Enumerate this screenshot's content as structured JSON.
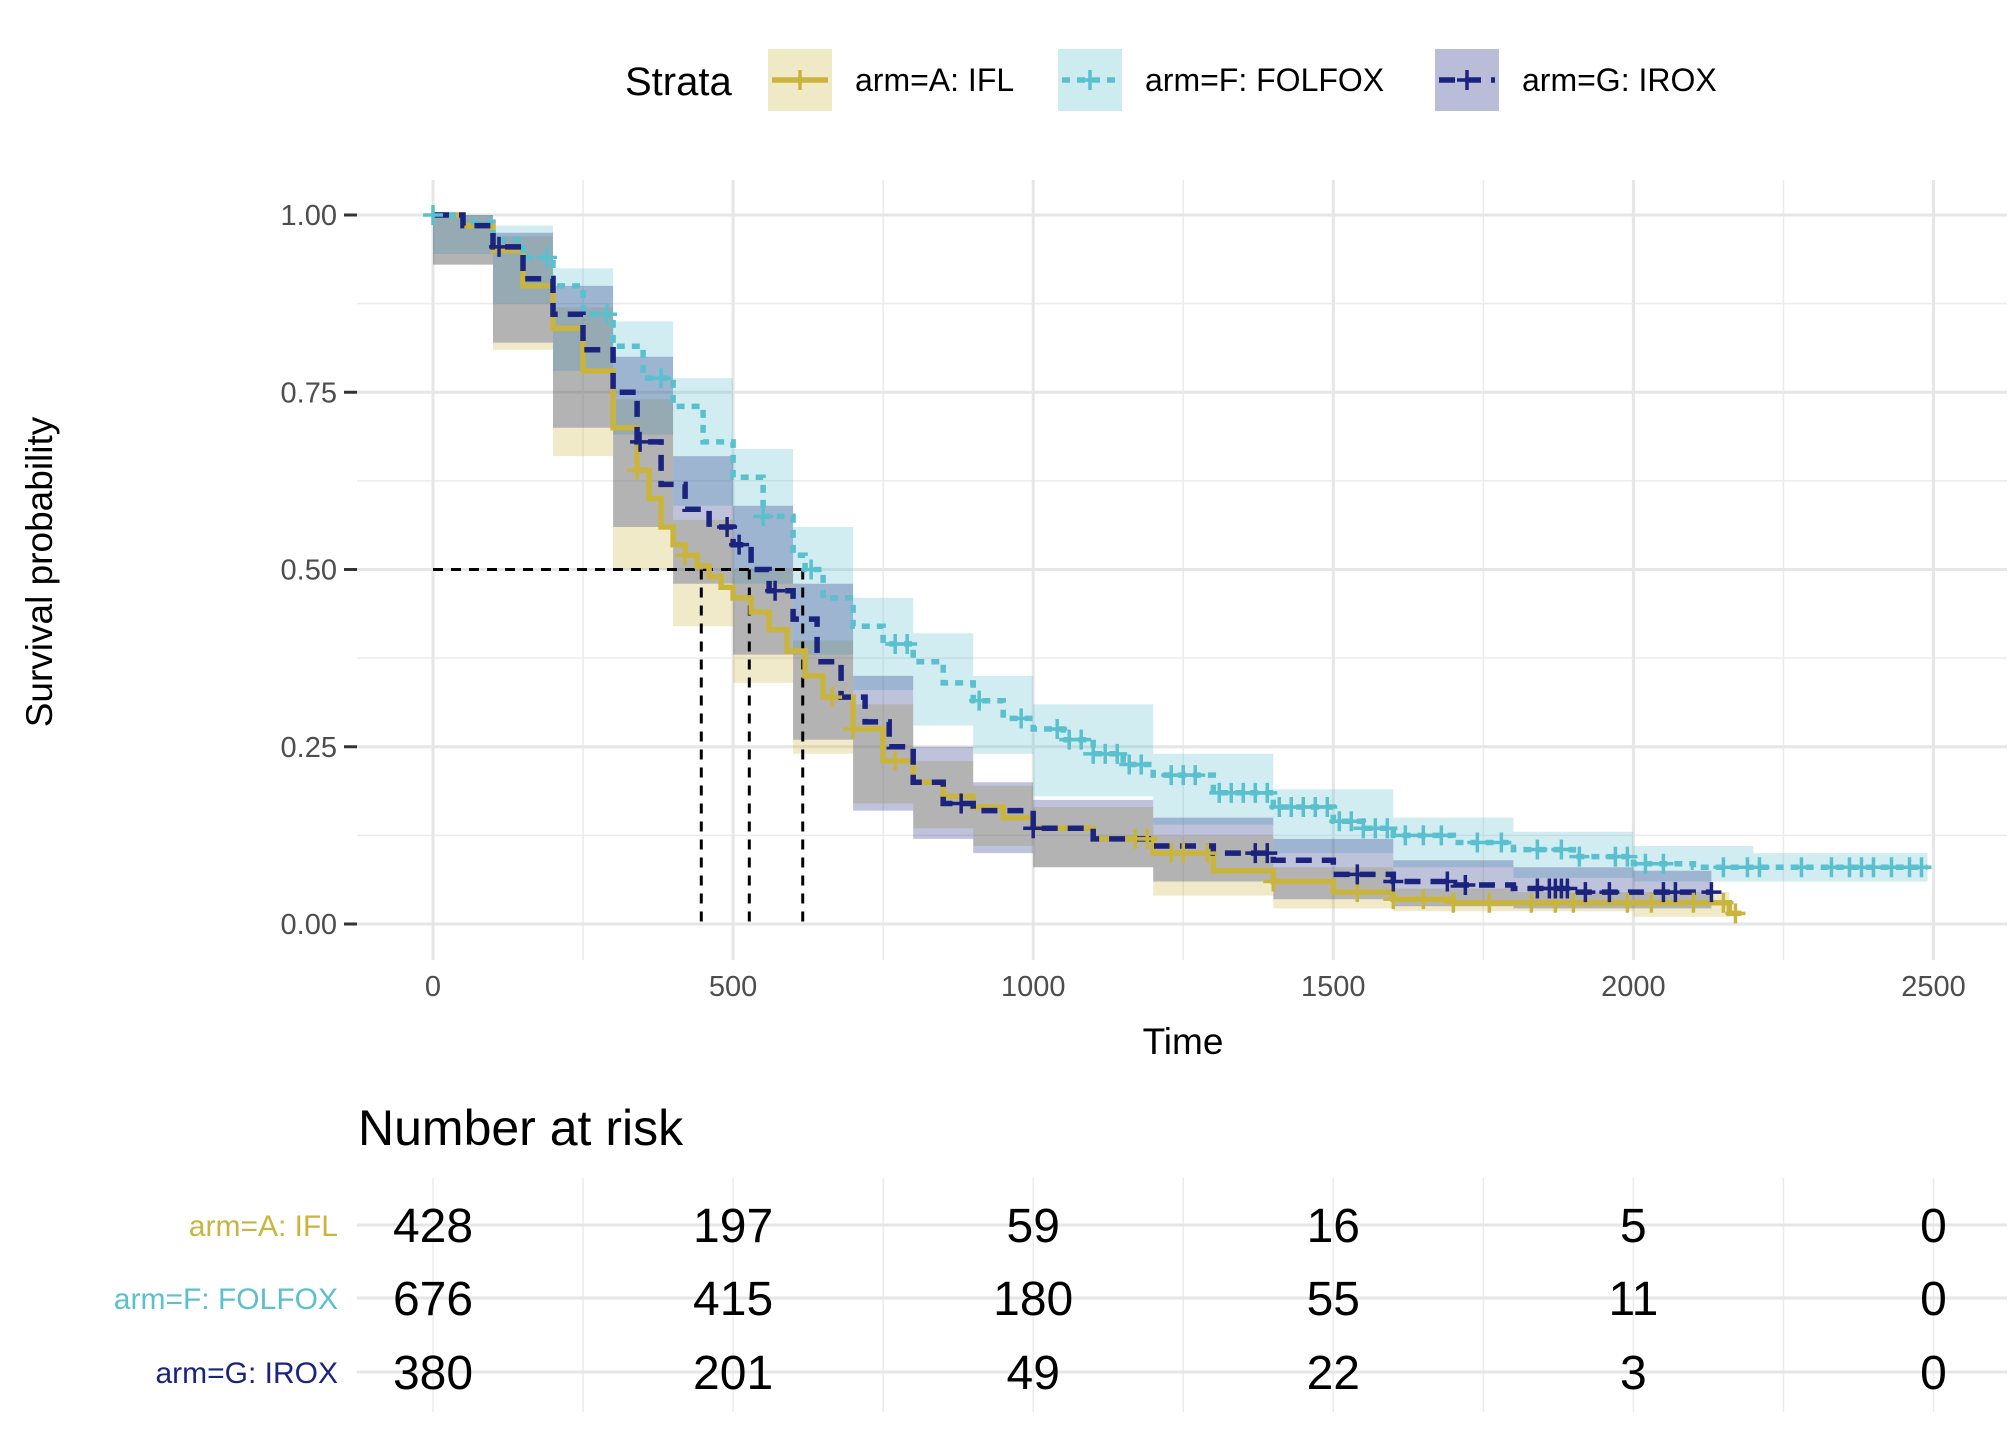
{
  "chart_data": {
    "type": "line",
    "subtype": "kaplan-meier survival curve",
    "xlabel": "Time",
    "ylabel": "Survival probability",
    "xlim": [
      0,
      2500
    ],
    "ylim": [
      0,
      1
    ],
    "x_ticks": [
      0,
      500,
      1000,
      1500,
      2000,
      2500
    ],
    "y_ticks": [
      0,
      0.25,
      0.5,
      0.75,
      1
    ],
    "y_tick_labels": [
      "0.00",
      "0.25",
      "0.50",
      "0.75",
      "1.00"
    ],
    "grid": true,
    "confidence_bands": true,
    "legend": {
      "title": "Strata",
      "placement": "top"
    },
    "median_survival": {
      "y": 0.5,
      "times": [
        447,
        527,
        616
      ]
    },
    "series": [
      {
        "name": "arm=A: IFL",
        "color": "#C9B53E",
        "dash": "solid",
        "points": [
          [
            0,
            1
          ],
          [
            50,
            0.985
          ],
          [
            100,
            0.95
          ],
          [
            150,
            0.9
          ],
          [
            200,
            0.84
          ],
          [
            250,
            0.78
          ],
          [
            300,
            0.7
          ],
          [
            340,
            0.64
          ],
          [
            360,
            0.6
          ],
          [
            380,
            0.56
          ],
          [
            400,
            0.535
          ],
          [
            420,
            0.52
          ],
          [
            440,
            0.505
          ],
          [
            460,
            0.49
          ],
          [
            480,
            0.475
          ],
          [
            500,
            0.46
          ],
          [
            530,
            0.44
          ],
          [
            560,
            0.415
          ],
          [
            590,
            0.385
          ],
          [
            620,
            0.35
          ],
          [
            650,
            0.32
          ],
          [
            700,
            0.275
          ],
          [
            750,
            0.23
          ],
          [
            800,
            0.2
          ],
          [
            850,
            0.18
          ],
          [
            900,
            0.165
          ],
          [
            950,
            0.15
          ],
          [
            1000,
            0.135
          ],
          [
            1100,
            0.12
          ],
          [
            1200,
            0.1
          ],
          [
            1300,
            0.075
          ],
          [
            1400,
            0.06
          ],
          [
            1500,
            0.045
          ],
          [
            1600,
            0.035
          ],
          [
            1700,
            0.03
          ],
          [
            1800,
            0.03
          ],
          [
            1900,
            0.03
          ],
          [
            2000,
            0.03
          ],
          [
            2100,
            0.03
          ],
          [
            2150,
            0.03
          ],
          [
            2160,
            0.015
          ],
          [
            2180,
            0.015
          ]
        ],
        "lower": [
          [
            0,
            1
          ],
          [
            100,
            0.93
          ],
          [
            200,
            0.81
          ],
          [
            300,
            0.66
          ],
          [
            400,
            0.5
          ],
          [
            500,
            0.42
          ],
          [
            600,
            0.34
          ],
          [
            700,
            0.24
          ],
          [
            800,
            0.17
          ],
          [
            900,
            0.135
          ],
          [
            1000,
            0.11
          ],
          [
            1200,
            0.08
          ],
          [
            1400,
            0.04
          ],
          [
            1600,
            0.022
          ],
          [
            1800,
            0.018
          ],
          [
            2000,
            0.018
          ],
          [
            2160,
            0.01
          ]
        ],
        "upper": [
          [
            0,
            1
          ],
          [
            100,
            0.97
          ],
          [
            200,
            0.87
          ],
          [
            300,
            0.74
          ],
          [
            400,
            0.57
          ],
          [
            500,
            0.5
          ],
          [
            600,
            0.4
          ],
          [
            700,
            0.31
          ],
          [
            800,
            0.23
          ],
          [
            900,
            0.195
          ],
          [
            1000,
            0.165
          ],
          [
            1200,
            0.125
          ],
          [
            1400,
            0.08
          ],
          [
            1600,
            0.05
          ],
          [
            1800,
            0.045
          ],
          [
            2000,
            0.045
          ],
          [
            2160,
            0.04
          ]
        ],
        "censor_times": [
          340,
          420,
          665,
          700,
          770,
          1170,
          1190,
          1230,
          1250,
          1290,
          1400,
          1540,
          1600,
          1650,
          1700,
          1760,
          1830,
          1870,
          1900,
          1990,
          2030,
          2100,
          2150,
          2170
        ]
      },
      {
        "name": "arm=F: FOLFOX",
        "color": "#5BC0CE",
        "dash": "8,7",
        "points": [
          [
            0,
            1
          ],
          [
            50,
            0.99
          ],
          [
            100,
            0.965
          ],
          [
            150,
            0.94
          ],
          [
            200,
            0.9
          ],
          [
            250,
            0.86
          ],
          [
            300,
            0.815
          ],
          [
            350,
            0.77
          ],
          [
            400,
            0.73
          ],
          [
            450,
            0.68
          ],
          [
            500,
            0.63
          ],
          [
            550,
            0.575
          ],
          [
            600,
            0.52
          ],
          [
            620,
            0.5
          ],
          [
            650,
            0.46
          ],
          [
            700,
            0.42
          ],
          [
            750,
            0.395
          ],
          [
            800,
            0.37
          ],
          [
            850,
            0.34
          ],
          [
            900,
            0.315
          ],
          [
            950,
            0.29
          ],
          [
            1000,
            0.275
          ],
          [
            1050,
            0.26
          ],
          [
            1100,
            0.24
          ],
          [
            1150,
            0.225
          ],
          [
            1200,
            0.21
          ],
          [
            1300,
            0.185
          ],
          [
            1400,
            0.165
          ],
          [
            1500,
            0.145
          ],
          [
            1550,
            0.135
          ],
          [
            1600,
            0.125
          ],
          [
            1700,
            0.115
          ],
          [
            1800,
            0.105
          ],
          [
            1900,
            0.095
          ],
          [
            2000,
            0.085
          ],
          [
            2100,
            0.08
          ],
          [
            2200,
            0.08
          ],
          [
            2300,
            0.08
          ],
          [
            2400,
            0.08
          ],
          [
            2490,
            0.08
          ]
        ],
        "lower": [
          [
            0,
            1
          ],
          [
            100,
            0.945
          ],
          [
            200,
            0.875
          ],
          [
            300,
            0.78
          ],
          [
            400,
            0.69
          ],
          [
            500,
            0.59
          ],
          [
            600,
            0.48
          ],
          [
            700,
            0.38
          ],
          [
            800,
            0.33
          ],
          [
            900,
            0.28
          ],
          [
            1000,
            0.24
          ],
          [
            1200,
            0.18
          ],
          [
            1400,
            0.14
          ],
          [
            1600,
            0.1
          ],
          [
            1800,
            0.08
          ],
          [
            2000,
            0.065
          ],
          [
            2200,
            0.06
          ],
          [
            2490,
            0.06
          ]
        ],
        "upper": [
          [
            0,
            1
          ],
          [
            100,
            0.985
          ],
          [
            200,
            0.925
          ],
          [
            300,
            0.85
          ],
          [
            400,
            0.77
          ],
          [
            500,
            0.67
          ],
          [
            600,
            0.56
          ],
          [
            700,
            0.46
          ],
          [
            800,
            0.41
          ],
          [
            900,
            0.35
          ],
          [
            1000,
            0.31
          ],
          [
            1200,
            0.24
          ],
          [
            1400,
            0.19
          ],
          [
            1600,
            0.15
          ],
          [
            1800,
            0.13
          ],
          [
            2000,
            0.11
          ],
          [
            2200,
            0.1
          ],
          [
            2490,
            0.1
          ]
        ],
        "censor_times": [
          0,
          190,
          290,
          380,
          550,
          630,
          770,
          790,
          910,
          980,
          1040,
          1060,
          1080,
          1100,
          1120,
          1140,
          1160,
          1180,
          1230,
          1250,
          1270,
          1310,
          1330,
          1350,
          1370,
          1390,
          1410,
          1430,
          1450,
          1470,
          1490,
          1510,
          1530,
          1550,
          1570,
          1590,
          1620,
          1650,
          1680,
          1740,
          1780,
          1840,
          1880,
          1910,
          1970,
          1990,
          2020,
          2050,
          2150,
          2190,
          2210,
          2280,
          2330,
          2360,
          2380,
          2400,
          2430,
          2460,
          2480
        ]
      },
      {
        "name": "arm=G: IROX",
        "color": "#1A237E",
        "dash": "16,10",
        "points": [
          [
            0,
            1
          ],
          [
            50,
            0.985
          ],
          [
            100,
            0.955
          ],
          [
            150,
            0.91
          ],
          [
            200,
            0.86
          ],
          [
            250,
            0.81
          ],
          [
            300,
            0.75
          ],
          [
            340,
            0.68
          ],
          [
            380,
            0.62
          ],
          [
            420,
            0.585
          ],
          [
            460,
            0.56
          ],
          [
            500,
            0.535
          ],
          [
            530,
            0.5
          ],
          [
            560,
            0.47
          ],
          [
            600,
            0.43
          ],
          [
            640,
            0.37
          ],
          [
            680,
            0.32
          ],
          [
            720,
            0.285
          ],
          [
            760,
            0.25
          ],
          [
            800,
            0.2
          ],
          [
            850,
            0.17
          ],
          [
            900,
            0.16
          ],
          [
            1000,
            0.135
          ],
          [
            1100,
            0.12
          ],
          [
            1200,
            0.11
          ],
          [
            1300,
            0.1
          ],
          [
            1400,
            0.09
          ],
          [
            1500,
            0.07
          ],
          [
            1600,
            0.06
          ],
          [
            1700,
            0.055
          ],
          [
            1800,
            0.05
          ],
          [
            1900,
            0.045
          ],
          [
            2000,
            0.045
          ],
          [
            2100,
            0.045
          ],
          [
            2130,
            0.045
          ]
        ],
        "lower": [
          [
            0,
            1
          ],
          [
            100,
            0.93
          ],
          [
            200,
            0.82
          ],
          [
            300,
            0.7
          ],
          [
            400,
            0.56
          ],
          [
            500,
            0.48
          ],
          [
            600,
            0.38
          ],
          [
            700,
            0.26
          ],
          [
            800,
            0.16
          ],
          [
            900,
            0.12
          ],
          [
            1000,
            0.1
          ],
          [
            1200,
            0.08
          ],
          [
            1400,
            0.06
          ],
          [
            1600,
            0.035
          ],
          [
            1800,
            0.025
          ],
          [
            2000,
            0.022
          ],
          [
            2130,
            0.022
          ]
        ],
        "upper": [
          [
            0,
            1
          ],
          [
            100,
            0.975
          ],
          [
            200,
            0.9
          ],
          [
            300,
            0.8
          ],
          [
            400,
            0.66
          ],
          [
            500,
            0.59
          ],
          [
            600,
            0.48
          ],
          [
            700,
            0.35
          ],
          [
            800,
            0.25
          ],
          [
            900,
            0.2
          ],
          [
            1000,
            0.175
          ],
          [
            1200,
            0.15
          ],
          [
            1400,
            0.12
          ],
          [
            1600,
            0.09
          ],
          [
            1800,
            0.08
          ],
          [
            2000,
            0.075
          ],
          [
            2130,
            0.075
          ]
        ],
        "censor_times": [
          110,
          345,
          490,
          510,
          570,
          880,
          1000,
          1370,
          1390,
          1540,
          1600,
          1690,
          1720,
          1840,
          1860,
          1870,
          1880,
          1890,
          1920,
          1960,
          2050,
          2070,
          2130
        ]
      }
    ],
    "risk_table": {
      "title": "Number at risk",
      "times": [
        0,
        500,
        1000,
        1500,
        2000,
        2500
      ],
      "rows": [
        {
          "name": "arm=A: IFL",
          "color": "#C9B53E",
          "values": [
            "428",
            "197",
            "59",
            "16",
            "5",
            "0"
          ]
        },
        {
          "name": "arm=F: FOLFOX",
          "color": "#5BC0CE",
          "values": [
            "676",
            "415",
            "180",
            "55",
            "11",
            "0"
          ]
        },
        {
          "name": "arm=G: IROX",
          "color": "#1A237E",
          "values": [
            "380",
            "201",
            "49",
            "22",
            "3",
            "0"
          ]
        }
      ]
    }
  }
}
